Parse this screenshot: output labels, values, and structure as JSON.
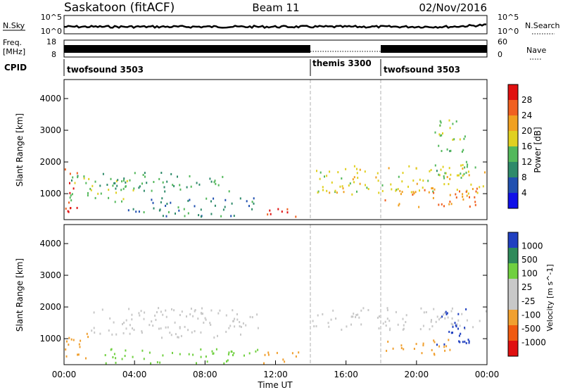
{
  "header": {
    "station": "Saskatoon (fitACF)",
    "beam": "Beam 11",
    "date": "02/Nov/2016"
  },
  "noise_panel": {
    "left_label": "N.Sky",
    "right_label": "N.Search",
    "left_ticks": [
      "10^5",
      "10^0"
    ],
    "right_ticks": [
      "10^5",
      "10^0"
    ]
  },
  "freq_panel": {
    "left_label_1": "Freq.",
    "left_label_2": "[MHz]",
    "right_label": "Nave",
    "left_ticks": [
      "18",
      "8"
    ],
    "right_ticks": [
      "60",
      "0"
    ]
  },
  "cpid_panel": {
    "label": "CPID",
    "modes": [
      {
        "name": "twofsound 3503",
        "start_hour": 0
      },
      {
        "name": "themis 3300",
        "start_hour": 14
      },
      {
        "name": "twofsound 3503",
        "start_hour": 18
      }
    ]
  },
  "colors": {
    "power_scale": [
      "#1010e8",
      "#2050b0",
      "#2e8a6a",
      "#53b85b",
      "#e0d020",
      "#f0a020",
      "#f06020",
      "#e01010"
    ],
    "velocity_scale": [
      "#e01010",
      "#f05a10",
      "#f0a030",
      "#c8c8c8",
      "#c8c8c8",
      "#70d040",
      "#2e8a5a",
      "#2040c0"
    ]
  },
  "chart_data": [
    {
      "type": "heatmap",
      "name": "power",
      "ylabel": "Slant Range [km]",
      "yticks": [
        "4000",
        "3000",
        "2000",
        "1000"
      ],
      "ylim": [
        180,
        4600
      ],
      "xlim": [
        0,
        24
      ],
      "colorbar": {
        "label": "Power [dB]",
        "ticks": [
          "28",
          "24",
          "20",
          "16",
          "12",
          "8",
          "4"
        ],
        "range": [
          0,
          30
        ]
      },
      "mode_change_hours": [
        14,
        18
      ],
      "scatter_bands": [
        {
          "t0": 0.0,
          "t1": 0.8,
          "r0": 300,
          "r1": 1800,
          "value": 26
        },
        {
          "t0": 0.3,
          "t1": 4.0,
          "r0": 700,
          "r1": 1600,
          "value": 14
        },
        {
          "t0": 2.0,
          "t1": 9.5,
          "r0": 1100,
          "r1": 1700,
          "value": 11
        },
        {
          "t0": 3.5,
          "t1": 11.0,
          "r0": 300,
          "r1": 900,
          "value": 9
        },
        {
          "t0": 11.0,
          "t1": 13.5,
          "r0": 250,
          "r1": 550,
          "value": 28
        },
        {
          "t0": 14.2,
          "t1": 24.0,
          "r0": 1000,
          "r1": 1900,
          "value": 17
        },
        {
          "t0": 18.0,
          "t1": 23.5,
          "r0": 600,
          "r1": 1200,
          "value": 22
        },
        {
          "t0": 21.0,
          "t1": 23.0,
          "r0": 1500,
          "r1": 3400,
          "value": 14
        }
      ]
    },
    {
      "type": "heatmap",
      "name": "velocity",
      "xlabel": "Time UT",
      "ylabel": "Slant Range [km]",
      "yticks": [
        "4000",
        "3000",
        "2000",
        "1000"
      ],
      "xticks": [
        "00:00",
        "04:00",
        "08:00",
        "12:00",
        "16:00",
        "20:00",
        "00:00"
      ],
      "ylim": [
        180,
        4600
      ],
      "xlim": [
        0,
        24
      ],
      "colorbar": {
        "label": "Velocity [m s^-1]",
        "ticks": [
          "1000",
          "500",
          "100",
          "25",
          "-25",
          "-100",
          "-500",
          "-1000"
        ]
      },
      "mode_change_hours": [
        14,
        18
      ],
      "scatter_bands": [
        {
          "t0": 0.0,
          "t1": 1.5,
          "r0": 300,
          "r1": 1200,
          "value": -300
        },
        {
          "t0": 1.5,
          "t1": 11.0,
          "r0": 1000,
          "r1": 2000,
          "value": 0
        },
        {
          "t0": 2.0,
          "t1": 11.0,
          "r0": 250,
          "r1": 700,
          "value": 150
        },
        {
          "t0": 11.0,
          "t1": 13.5,
          "r0": 250,
          "r1": 600,
          "value": -300
        },
        {
          "t0": 14.0,
          "t1": 24.0,
          "r0": 1300,
          "r1": 2000,
          "value": 0
        },
        {
          "t0": 18.0,
          "t1": 22.0,
          "r0": 500,
          "r1": 1000,
          "value": -200
        },
        {
          "t0": 21.0,
          "t1": 23.0,
          "r0": 800,
          "r1": 2000,
          "value": 500
        }
      ]
    }
  ]
}
